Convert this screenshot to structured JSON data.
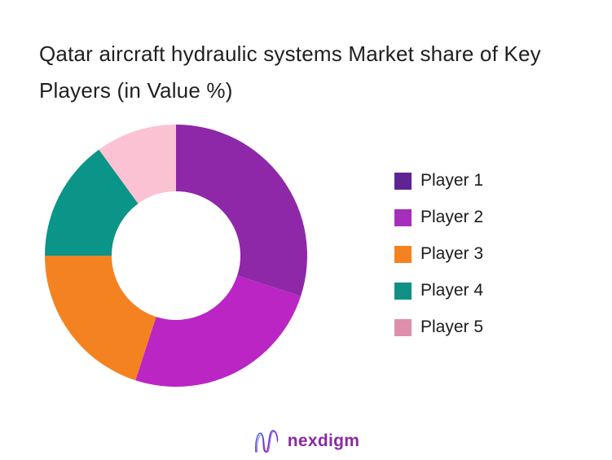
{
  "chart_data": {
    "type": "pie",
    "subtype": "donut",
    "title": "Qatar aircraft hydraulic systems Market share of Key Players (in Value %)",
    "categories": [
      "Player 1",
      "Player 2",
      "Player 3",
      "Player 4",
      "Player 5"
    ],
    "values": [
      30,
      25,
      20,
      15,
      10
    ],
    "unit": "percent",
    "values_estimated_from_arc_angles": true,
    "colors": [
      "#8E28A8",
      "#BA25C4",
      "#F58220",
      "#0B9488",
      "#FBC2D4"
    ],
    "start_angle_deg": 0,
    "direction": "clockwise",
    "donut_hole_ratio": 0.49,
    "legend_position": "right",
    "grid": false,
    "data_labels_shown": false
  },
  "legend": {
    "items": [
      {
        "label": "Player 1",
        "color": "#5F2394"
      },
      {
        "label": "Player 2",
        "color": "#A52FBA"
      },
      {
        "label": "Player 3",
        "color": "#F58220"
      },
      {
        "label": "Player 4",
        "color": "#109184"
      },
      {
        "label": "Player 5",
        "color": "#DE8FAB"
      }
    ]
  },
  "footer": {
    "brand": "nexdigm",
    "logo_icon": "nexdigm-n-wave-icon",
    "brand_color": "#8A2AA0",
    "logo_gradient_start": "#3B7BDF",
    "logo_gradient_mid": "#6A35D4",
    "logo_gradient_end": "#A31BBB"
  },
  "page": {
    "background": "#ffffff",
    "title_color": "#1f1f1f",
    "legend_text_color": "#1b1b1b"
  }
}
